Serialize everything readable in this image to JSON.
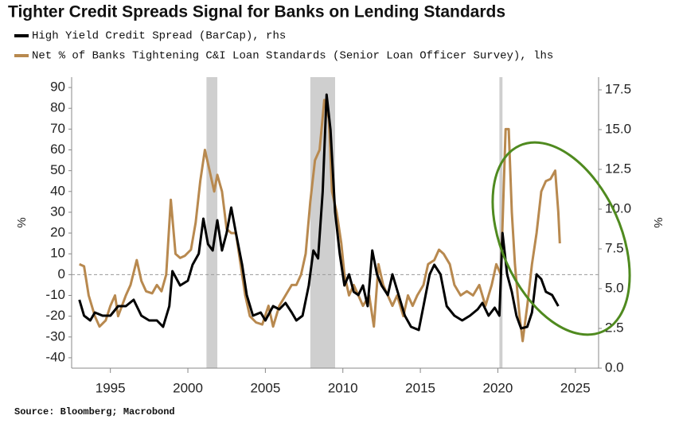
{
  "chart_data": {
    "type": "line",
    "title": "Tighter Credit Spreads Signal for Banks on Lending Standards",
    "source": "Source: Bloomberg; Macrobond",
    "ylabel": "%",
    "y2label": "%",
    "xlim": [
      1992.5,
      2026.5
    ],
    "xticks": [
      1995,
      2000,
      2005,
      2010,
      2015,
      2020,
      2025
    ],
    "ylim": [
      -45,
      95
    ],
    "yticks": [
      -40,
      -30,
      -20,
      -10,
      0,
      10,
      20,
      30,
      40,
      50,
      60,
      70,
      80,
      90
    ],
    "y2lim": [
      0,
      18.3
    ],
    "y2ticks": [
      {
        "value": 0,
        "label": "0.0"
      },
      2.5,
      {
        "value": 5,
        "label": "5.0"
      },
      7.5,
      {
        "value": 10,
        "label": "10.0"
      },
      12.5,
      {
        "value": 15,
        "label": "15.0"
      },
      17.5
    ],
    "recessions": [
      [
        2001.2,
        2001.9
      ],
      [
        2007.9,
        2009.5
      ],
      [
        2020.1,
        2020.3
      ]
    ],
    "series": [
      {
        "name": "High Yield Credit Spread (BarCap), rhs",
        "color": "#000000",
        "axis": "y2",
        "x": [
          1993.0,
          1993.3,
          1993.7,
          1994.0,
          1994.5,
          1995.0,
          1995.5,
          1996.0,
          1996.5,
          1997.0,
          1997.5,
          1998.0,
          1998.4,
          1998.8,
          1999.0,
          1999.5,
          2000.0,
          2000.3,
          2000.7,
          2001.0,
          2001.3,
          2001.6,
          2001.9,
          2002.2,
          2002.5,
          2002.8,
          2003.1,
          2003.5,
          2003.8,
          2004.2,
          2004.7,
          2005.0,
          2005.5,
          2005.9,
          2006.3,
          2006.7,
          2007.0,
          2007.4,
          2007.8,
          2008.1,
          2008.4,
          2008.7,
          2008.95,
          2009.2,
          2009.5,
          2009.8,
          2010.1,
          2010.4,
          2010.7,
          2011.0,
          2011.3,
          2011.6,
          2011.9,
          2012.2,
          2012.5,
          2012.9,
          2013.2,
          2013.6,
          2014.0,
          2014.4,
          2014.9,
          2015.2,
          2015.6,
          2015.9,
          2016.3,
          2016.7,
          2017.2,
          2017.7,
          2018.2,
          2018.7,
          2019.0,
          2019.4,
          2019.8,
          2020.1,
          2020.3,
          2020.6,
          2020.9,
          2021.2,
          2021.5,
          2021.9,
          2022.2,
          2022.5,
          2022.8,
          2023.1,
          2023.5,
          2023.9
        ],
        "values": [
          4.3,
          3.3,
          3.0,
          3.5,
          3.3,
          3.3,
          3.9,
          3.9,
          4.3,
          3.3,
          3.0,
          3.0,
          2.6,
          3.9,
          6.1,
          5.2,
          5.5,
          6.5,
          7.2,
          9.4,
          7.8,
          7.4,
          9.3,
          7.4,
          8.5,
          10.1,
          8.5,
          6.5,
          4.6,
          3.3,
          3.5,
          3.0,
          3.9,
          3.7,
          4.1,
          3.5,
          3.0,
          3.3,
          5.2,
          7.4,
          6.9,
          11.1,
          17.2,
          15.0,
          9.8,
          7.2,
          5.2,
          5.9,
          4.8,
          4.6,
          5.2,
          3.9,
          7.4,
          5.9,
          5.2,
          4.6,
          5.9,
          4.6,
          3.3,
          2.6,
          2.4,
          3.9,
          5.9,
          6.5,
          5.9,
          3.9,
          3.3,
          3.0,
          3.3,
          3.7,
          4.1,
          3.3,
          3.8,
          3.3,
          8.5,
          5.9,
          4.8,
          3.3,
          2.5,
          2.6,
          3.5,
          5.9,
          5.6,
          4.8,
          4.6,
          3.9
        ]
      },
      {
        "name": "Net % of Banks Tightening C&I Loan Standards (Senior Loan Officer Survey), lhs",
        "color": "#b8894f",
        "axis": "y",
        "x": [
          1993.0,
          1993.3,
          1993.6,
          1994.0,
          1994.3,
          1994.7,
          1995.0,
          1995.3,
          1995.5,
          1996.0,
          1996.3,
          1996.7,
          1997.0,
          1997.3,
          1997.7,
          1998.0,
          1998.3,
          1998.6,
          1998.9,
          1999.2,
          1999.5,
          1999.8,
          2000.2,
          2000.5,
          2000.8,
          2001.1,
          2001.4,
          2001.7,
          2001.9,
          2002.2,
          2002.5,
          2002.8,
          2003.1,
          2003.4,
          2003.7,
          2004.0,
          2004.4,
          2004.8,
          2005.2,
          2005.5,
          2005.9,
          2006.3,
          2006.7,
          2007.0,
          2007.3,
          2007.6,
          2007.9,
          2008.2,
          2008.5,
          2008.8,
          2009.1,
          2009.3,
          2009.6,
          2009.9,
          2010.1,
          2010.4,
          2010.7,
          2011.0,
          2011.3,
          2011.7,
          2012.0,
          2012.3,
          2012.6,
          2012.9,
          2013.2,
          2013.5,
          2013.9,
          2014.2,
          2014.5,
          2014.8,
          2015.2,
          2015.5,
          2015.9,
          2016.2,
          2016.5,
          2016.9,
          2017.2,
          2017.6,
          2018.0,
          2018.4,
          2018.8,
          2019.2,
          2019.6,
          2019.9,
          2020.2,
          2020.5,
          2020.7,
          2020.9,
          2021.1,
          2021.4,
          2021.6,
          2021.9,
          2022.2,
          2022.5,
          2022.8,
          2023.1,
          2023.4,
          2023.7,
          2023.9,
          2024.0
        ],
        "values": [
          5,
          4,
          -10,
          -20,
          -25,
          -22,
          -15,
          -10,
          -20,
          -10,
          -5,
          7,
          -3,
          -8,
          -9,
          -5,
          -8,
          0,
          36,
          10,
          8,
          9,
          12,
          25,
          45,
          60,
          50,
          40,
          48,
          40,
          22,
          20,
          20,
          5,
          -10,
          -20,
          -23,
          -24,
          -15,
          -25,
          -15,
          -10,
          -5,
          -5,
          0,
          10,
          35,
          55,
          60,
          84,
          75,
          40,
          30,
          15,
          0,
          -10,
          -5,
          -10,
          -15,
          -10,
          -25,
          5,
          -5,
          -10,
          -15,
          -10,
          -20,
          -10,
          -15,
          -10,
          -5,
          5,
          7,
          12,
          10,
          5,
          -5,
          -10,
          -8,
          -10,
          -5,
          -15,
          -5,
          5,
          0,
          70,
          70,
          30,
          5,
          -20,
          -32,
          -15,
          5,
          20,
          40,
          45,
          46,
          50,
          30,
          15
        ]
      }
    ]
  }
}
